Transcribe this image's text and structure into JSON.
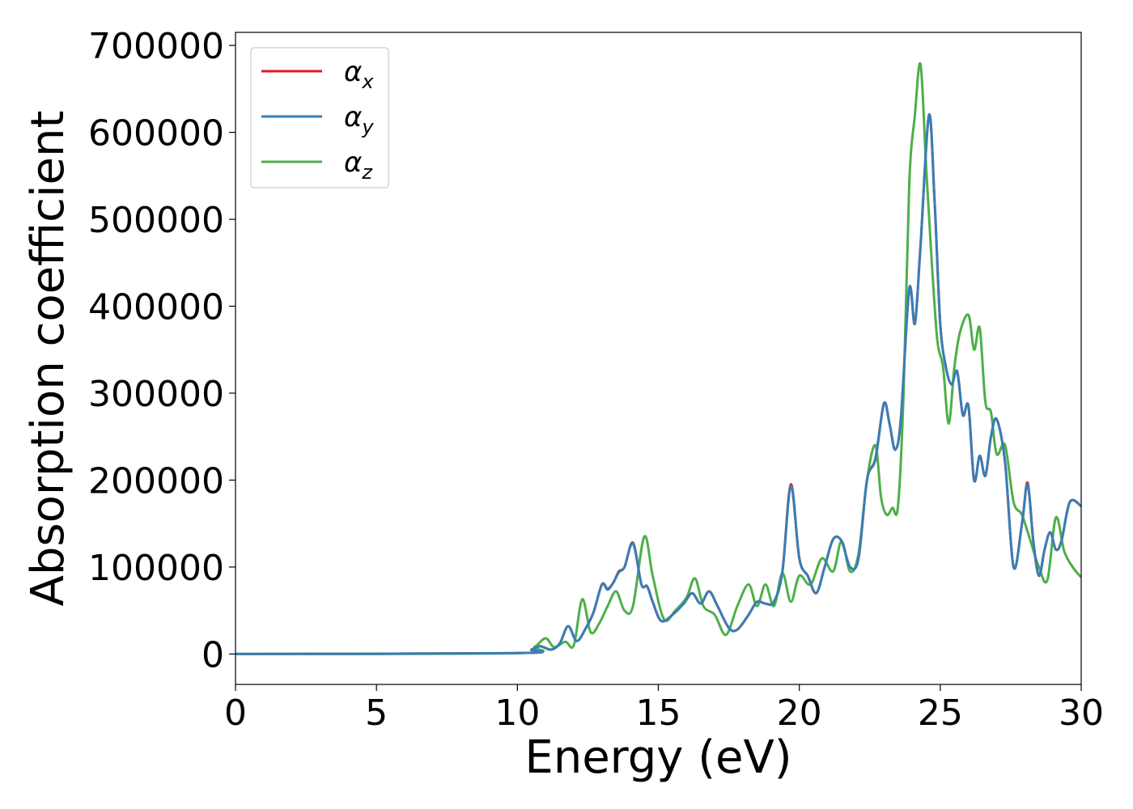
{
  "chart_data": {
    "type": "line",
    "title": "",
    "xlabel": "Energy (eV)",
    "ylabel": "Absorption coefficient",
    "xlim": [
      0,
      30
    ],
    "ylim": [
      -35000,
      715000
    ],
    "xticks": [
      0,
      5,
      10,
      15,
      20,
      25,
      30
    ],
    "xtick_labels": [
      "0",
      "5",
      "10",
      "15",
      "20",
      "25",
      "30"
    ],
    "yticks": [
      0,
      100000,
      200000,
      300000,
      400000,
      500000,
      600000,
      700000
    ],
    "ytick_labels": [
      "0",
      "100000",
      "200000",
      "300000",
      "400000",
      "500000",
      "600000",
      "700000"
    ],
    "grid": false,
    "legend": "top-left",
    "series": [
      {
        "name": "αx",
        "symbol": "α",
        "subscript": "x",
        "color": "#e41a1c",
        "x": [
          0,
          10,
          10.5,
          10.8,
          11.2,
          11.5,
          11.8,
          12.1,
          12.4,
          12.7,
          13.0,
          13.2,
          13.4,
          13.6,
          13.8,
          14.1,
          14.4,
          14.6,
          14.8,
          15.1,
          15.5,
          15.9,
          16.2,
          16.5,
          16.8,
          17.1,
          17.5,
          17.8,
          18.2,
          18.5,
          18.8,
          19.1,
          19.4,
          19.7,
          20.0,
          20.3,
          20.6,
          20.9,
          21.2,
          21.5,
          21.8,
          22.1,
          22.4,
          22.7,
          23.0,
          23.2,
          23.4,
          23.6,
          23.9,
          24.1,
          24.3,
          24.6,
          24.8,
          25.0,
          25.2,
          25.4,
          25.6,
          25.8,
          26.0,
          26.2,
          26.4,
          26.6,
          26.8,
          27.0,
          27.3,
          27.6,
          27.9,
          28.1,
          28.3,
          28.5,
          28.7,
          28.9,
          29.1,
          29.3,
          29.6,
          30.0
        ],
        "y": [
          0,
          1000,
          5000,
          9000,
          5000,
          12000,
          32000,
          15000,
          28000,
          48000,
          80000,
          75000,
          82000,
          95000,
          100000,
          128000,
          80000,
          78000,
          60000,
          38000,
          45000,
          58000,
          70000,
          58000,
          72000,
          55000,
          30000,
          28000,
          45000,
          60000,
          58000,
          60000,
          95000,
          195000,
          110000,
          90000,
          70000,
          100000,
          132000,
          130000,
          100000,
          110000,
          200000,
          225000,
          288000,
          265000,
          235000,
          270000,
          420000,
          380000,
          470000,
          620000,
          520000,
          380000,
          330000,
          310000,
          325000,
          275000,
          285000,
          200000,
          228000,
          205000,
          250000,
          270000,
          220000,
          100000,
          150000,
          197000,
          130000,
          90000,
          120000,
          140000,
          120000,
          130000,
          175000,
          170000
        ]
      },
      {
        "name": "αy",
        "symbol": "α",
        "subscript": "y",
        "color": "#377eb8",
        "x": [
          0,
          10,
          10.5,
          10.8,
          11.2,
          11.5,
          11.8,
          12.1,
          12.4,
          12.7,
          13.0,
          13.2,
          13.4,
          13.6,
          13.8,
          14.1,
          14.4,
          14.6,
          14.8,
          15.1,
          15.5,
          15.9,
          16.2,
          16.5,
          16.8,
          17.1,
          17.5,
          17.8,
          18.2,
          18.5,
          18.8,
          19.1,
          19.4,
          19.7,
          20.0,
          20.3,
          20.6,
          20.9,
          21.2,
          21.5,
          21.8,
          22.1,
          22.4,
          22.7,
          23.0,
          23.2,
          23.4,
          23.6,
          23.9,
          24.1,
          24.3,
          24.6,
          24.8,
          25.0,
          25.2,
          25.4,
          25.6,
          25.8,
          26.0,
          26.2,
          26.4,
          26.6,
          26.8,
          27.0,
          27.3,
          27.6,
          27.9,
          28.1,
          28.3,
          28.5,
          28.7,
          28.9,
          29.1,
          29.3,
          29.6,
          30.0
        ],
        "y": [
          0,
          1000,
          5000,
          9000,
          5000,
          12000,
          32000,
          15000,
          28000,
          48000,
          80000,
          74000,
          82000,
          94000,
          100000,
          127000,
          80000,
          78000,
          60000,
          38000,
          45000,
          58000,
          70000,
          58000,
          72000,
          55000,
          30000,
          28000,
          45000,
          60000,
          58000,
          60000,
          95000,
          193000,
          110000,
          90000,
          70000,
          100000,
          132000,
          130000,
          100000,
          110000,
          200000,
          224000,
          288000,
          265000,
          235000,
          270000,
          420000,
          380000,
          470000,
          620000,
          520000,
          380000,
          330000,
          310000,
          325000,
          275000,
          285000,
          200000,
          228000,
          205000,
          250000,
          270000,
          220000,
          100000,
          150000,
          195000,
          130000,
          90000,
          120000,
          140000,
          120000,
          130000,
          175000,
          170000
        ]
      },
      {
        "name": "αz",
        "symbol": "α",
        "subscript": "z",
        "color": "#4daf4a",
        "x": [
          0,
          10,
          10.6,
          11.0,
          11.3,
          11.7,
          12.0,
          12.3,
          12.6,
          12.9,
          13.2,
          13.5,
          13.8,
          14.1,
          14.5,
          14.8,
          15.2,
          15.6,
          16.0,
          16.3,
          16.6,
          17.0,
          17.4,
          17.8,
          18.2,
          18.5,
          18.8,
          19.1,
          19.4,
          19.7,
          20.0,
          20.4,
          20.8,
          21.2,
          21.5,
          21.8,
          22.1,
          22.4,
          22.7,
          22.9,
          23.1,
          23.3,
          23.5,
          23.7,
          23.9,
          24.1,
          24.3,
          24.5,
          24.7,
          24.9,
          25.1,
          25.3,
          25.5,
          25.7,
          26.0,
          26.2,
          26.4,
          26.6,
          26.8,
          27.0,
          27.3,
          27.6,
          27.9,
          28.2,
          28.5,
          28.8,
          29.1,
          29.4,
          29.7,
          30.0
        ],
        "y": [
          0,
          1000,
          8000,
          18000,
          8000,
          14000,
          10000,
          63000,
          25000,
          35000,
          55000,
          72000,
          50000,
          55000,
          135000,
          90000,
          40000,
          50000,
          65000,
          87000,
          55000,
          45000,
          22000,
          55000,
          80000,
          55000,
          80000,
          55000,
          93000,
          60000,
          90000,
          80000,
          110000,
          95000,
          130000,
          95000,
          115000,
          200000,
          240000,
          180000,
          160000,
          168000,
          170000,
          300000,
          540000,
          620000,
          678000,
          560000,
          450000,
          360000,
          330000,
          265000,
          330000,
          370000,
          390000,
          350000,
          375000,
          290000,
          278000,
          230000,
          240000,
          175000,
          160000,
          130000,
          100000,
          85000,
          157000,
          118000,
          100000,
          88000
        ]
      }
    ]
  }
}
